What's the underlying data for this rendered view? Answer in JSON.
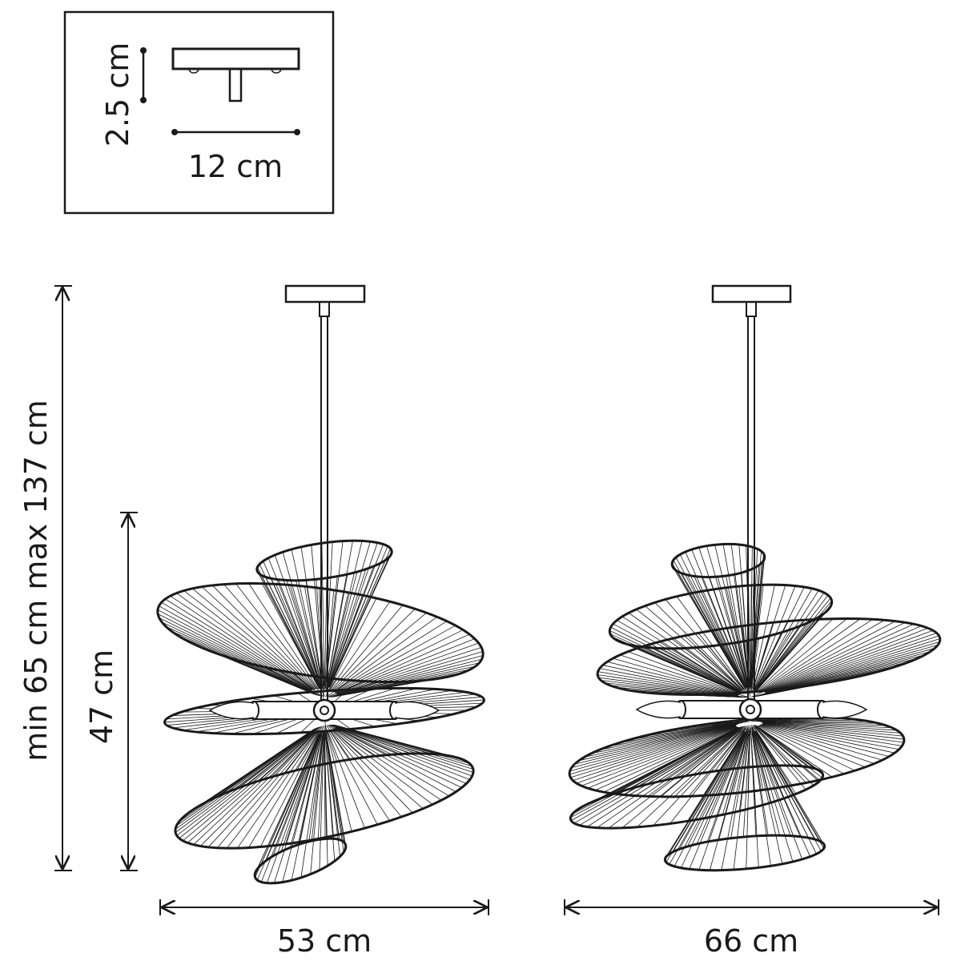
{
  "inset": {
    "height_label": "2.5 cm",
    "width_label": "12 cm"
  },
  "dimensions": {
    "total_height_label": "min 65 cm max 137 cm",
    "body_height_label": "47 cm",
    "width_front_label": "53 cm",
    "width_side_label": "66 cm"
  },
  "colors": {
    "line": "#1a1a1a",
    "background": "#ffffff"
  }
}
